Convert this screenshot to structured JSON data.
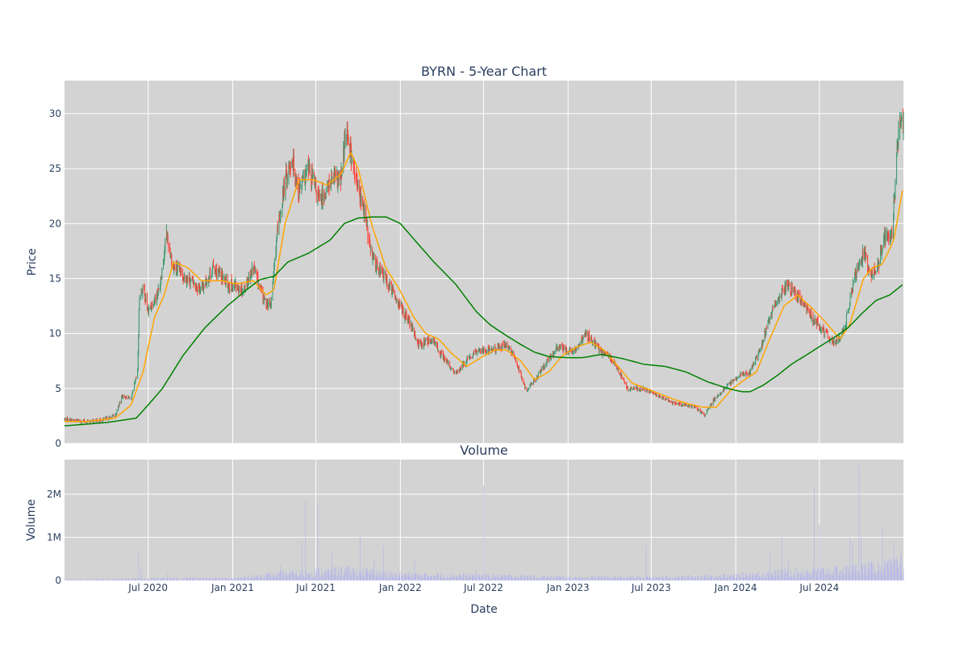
{
  "chart_data": [
    {
      "type": "candlestick",
      "title": "BYRN - 5-Year Chart",
      "ylabel": "Price",
      "ylim": [
        0,
        33
      ],
      "x_range": [
        "2020-01-01",
        "2024-12-31"
      ],
      "yticks": [
        0,
        5,
        10,
        15,
        20,
        25,
        30
      ],
      "grid": true,
      "colors": {
        "up": "#3d9970",
        "down": "#ff4136",
        "ma_short": "#ffa500",
        "ma_long": "#008000",
        "panel_bg": "#d3d3d3",
        "grid": "#ffffff"
      },
      "price_key_points": [
        [
          "2020-01-01",
          2.2
        ],
        [
          "2020-02-15",
          2.0
        ],
        [
          "2020-03-20",
          2.1
        ],
        [
          "2020-04-20",
          2.5
        ],
        [
          "2020-05-05",
          4.3
        ],
        [
          "2020-05-25",
          4.1
        ],
        [
          "2020-06-08",
          6.5
        ],
        [
          "2020-06-12",
          13.5
        ],
        [
          "2020-06-20",
          14.2
        ],
        [
          "2020-07-01",
          12.0
        ],
        [
          "2020-07-25",
          14.0
        ],
        [
          "2020-08-10",
          19.0
        ],
        [
          "2020-08-25",
          16.0
        ],
        [
          "2020-09-25",
          15.0
        ],
        [
          "2020-10-25",
          14.0
        ],
        [
          "2020-11-20",
          16.0
        ],
        [
          "2020-12-20",
          14.5
        ],
        [
          "2021-01-25",
          14.0
        ],
        [
          "2021-02-15",
          16.0
        ],
        [
          "2021-03-10",
          13.0
        ],
        [
          "2021-03-25",
          12.5
        ],
        [
          "2021-04-05",
          18.0
        ],
        [
          "2021-04-25",
          24.0
        ],
        [
          "2021-05-10",
          26.0
        ],
        [
          "2021-05-25",
          23.0
        ],
        [
          "2021-06-15",
          25.0
        ],
        [
          "2021-07-10",
          22.0
        ],
        [
          "2021-08-05",
          24.0
        ],
        [
          "2021-08-25",
          24.0
        ],
        [
          "2021-09-05",
          29.0
        ],
        [
          "2021-09-25",
          24.0
        ],
        [
          "2021-10-15",
          21.0
        ],
        [
          "2021-10-30",
          17.0
        ],
        [
          "2021-11-30",
          15.0
        ],
        [
          "2021-12-25",
          13.0
        ],
        [
          "2022-01-20",
          11.0
        ],
        [
          "2022-02-10",
          9.0
        ],
        [
          "2022-03-10",
          9.5
        ],
        [
          "2022-04-10",
          7.5
        ],
        [
          "2022-05-01",
          6.3
        ],
        [
          "2022-05-25",
          7.5
        ],
        [
          "2022-06-20",
          8.5
        ],
        [
          "2022-07-20",
          8.5
        ],
        [
          "2022-08-20",
          9.0
        ],
        [
          "2022-09-10",
          7.5
        ],
        [
          "2022-10-01",
          4.8
        ],
        [
          "2022-10-15",
          5.5
        ],
        [
          "2022-11-10",
          7.0
        ],
        [
          "2022-12-10",
          8.8
        ],
        [
          "2023-01-10",
          8.3
        ],
        [
          "2023-02-10",
          10.0
        ],
        [
          "2023-03-10",
          8.5
        ],
        [
          "2023-04-10",
          7.5
        ],
        [
          "2023-05-10",
          5.0
        ],
        [
          "2023-06-10",
          5.0
        ],
        [
          "2023-07-10",
          4.5
        ],
        [
          "2023-08-10",
          3.8
        ],
        [
          "2023-09-10",
          3.5
        ],
        [
          "2023-10-05",
          3.3
        ],
        [
          "2023-10-25",
          2.6
        ],
        [
          "2023-11-15",
          4.0
        ],
        [
          "2023-12-15",
          5.3
        ],
        [
          "2024-01-15",
          6.3
        ],
        [
          "2024-02-01",
          6.5
        ],
        [
          "2024-02-25",
          8.8
        ],
        [
          "2024-03-20",
          12.0
        ],
        [
          "2024-04-20",
          14.5
        ],
        [
          "2024-05-20",
          13.0
        ],
        [
          "2024-06-15",
          11.5
        ],
        [
          "2024-07-15",
          10.0
        ],
        [
          "2024-08-05",
          9.0
        ],
        [
          "2024-08-25",
          10.5
        ],
        [
          "2024-09-15",
          15.0
        ],
        [
          "2024-10-05",
          17.5
        ],
        [
          "2024-10-20",
          15.5
        ],
        [
          "2024-11-05",
          16.0
        ],
        [
          "2024-11-20",
          19.0
        ],
        [
          "2024-12-05",
          18.5
        ],
        [
          "2024-12-20",
          28.0
        ],
        [
          "2024-12-31",
          30.0
        ]
      ],
      "ma_short_key_points": [
        [
          "2020-01-01",
          2.0
        ],
        [
          "2020-02-20",
          2.0
        ],
        [
          "2020-04-20",
          2.3
        ],
        [
          "2020-05-25",
          3.5
        ],
        [
          "2020-06-20",
          6.5
        ],
        [
          "2020-07-15",
          11.5
        ],
        [
          "2020-08-05",
          13.5
        ],
        [
          "2020-08-25",
          16.5
        ],
        [
          "2020-09-25",
          16.0
        ],
        [
          "2020-10-25",
          14.8
        ],
        [
          "2020-12-10",
          14.8
        ],
        [
          "2021-01-10",
          14.5
        ],
        [
          "2021-02-15",
          14.8
        ],
        [
          "2021-03-15",
          13.5
        ],
        [
          "2021-04-01",
          14.0
        ],
        [
          "2021-04-25",
          20.0
        ],
        [
          "2021-05-25",
          24.0
        ],
        [
          "2021-06-25",
          24.0
        ],
        [
          "2021-07-25",
          23.5
        ],
        [
          "2021-08-25",
          24.5
        ],
        [
          "2021-09-15",
          26.5
        ],
        [
          "2021-10-01",
          25.0
        ],
        [
          "2021-10-30",
          20.0
        ],
        [
          "2021-11-30",
          16.0
        ],
        [
          "2021-12-30",
          14.0
        ],
        [
          "2022-01-30",
          11.5
        ],
        [
          "2022-02-25",
          10.0
        ],
        [
          "2022-03-25",
          9.5
        ],
        [
          "2022-04-20",
          8.3
        ],
        [
          "2022-05-25",
          7.0
        ],
        [
          "2022-06-25",
          7.8
        ],
        [
          "2022-07-25",
          8.5
        ],
        [
          "2022-08-20",
          8.5
        ],
        [
          "2022-09-20",
          7.5
        ],
        [
          "2022-10-20",
          5.8
        ],
        [
          "2022-11-20",
          6.5
        ],
        [
          "2022-12-20",
          8.0
        ],
        [
          "2023-01-20",
          8.8
        ],
        [
          "2023-02-20",
          9.2
        ],
        [
          "2023-03-20",
          8.5
        ],
        [
          "2023-04-20",
          7.0
        ],
        [
          "2023-05-20",
          5.5
        ],
        [
          "2023-06-20",
          5.0
        ],
        [
          "2023-07-20",
          4.5
        ],
        [
          "2023-08-20",
          4.0
        ],
        [
          "2023-09-20",
          3.6
        ],
        [
          "2023-10-20",
          3.3
        ],
        [
          "2023-11-20",
          3.3
        ],
        [
          "2023-12-20",
          4.8
        ],
        [
          "2024-01-20",
          5.8
        ],
        [
          "2024-02-15",
          6.5
        ],
        [
          "2024-03-15",
          9.5
        ],
        [
          "2024-04-15",
          12.5
        ],
        [
          "2024-05-15",
          13.5
        ],
        [
          "2024-06-15",
          12.3
        ],
        [
          "2024-07-15",
          11.0
        ],
        [
          "2024-08-15",
          9.5
        ],
        [
          "2024-09-05",
          10.8
        ],
        [
          "2024-10-05",
          15.0
        ],
        [
          "2024-10-25",
          16.0
        ],
        [
          "2024-11-15",
          16.3
        ],
        [
          "2024-12-10",
          18.5
        ],
        [
          "2024-12-31",
          23.5
        ]
      ],
      "ma_long_key_points": [
        [
          "2020-01-01",
          1.6
        ],
        [
          "2020-04-01",
          1.9
        ],
        [
          "2020-06-05",
          2.3
        ],
        [
          "2020-07-01",
          3.5
        ],
        [
          "2020-08-01",
          5.0
        ],
        [
          "2020-09-15",
          8.0
        ],
        [
          "2020-11-01",
          10.5
        ],
        [
          "2020-12-20",
          12.5
        ],
        [
          "2021-02-01",
          14.0
        ],
        [
          "2021-03-01",
          14.9
        ],
        [
          "2021-04-01",
          15.2
        ],
        [
          "2021-05-01",
          16.5
        ],
        [
          "2021-06-15",
          17.3
        ],
        [
          "2021-08-01",
          18.5
        ],
        [
          "2021-09-01",
          20.0
        ],
        [
          "2021-10-01",
          20.5
        ],
        [
          "2021-11-01",
          20.6
        ],
        [
          "2021-12-01",
          20.6
        ],
        [
          "2022-01-01",
          20.0
        ],
        [
          "2022-02-01",
          18.5
        ],
        [
          "2022-03-15",
          16.5
        ],
        [
          "2022-05-01",
          14.5
        ],
        [
          "2022-06-15",
          12.0
        ],
        [
          "2022-07-15",
          10.8
        ],
        [
          "2022-08-20",
          9.8
        ],
        [
          "2022-09-20",
          9.0
        ],
        [
          "2022-10-20",
          8.3
        ],
        [
          "2022-11-20",
          7.9
        ],
        [
          "2023-01-01",
          7.8
        ],
        [
          "2023-02-01",
          7.8
        ],
        [
          "2023-03-15",
          8.1
        ],
        [
          "2023-05-01",
          7.7
        ],
        [
          "2023-06-15",
          7.2
        ],
        [
          "2023-08-01",
          7.0
        ],
        [
          "2023-09-15",
          6.5
        ],
        [
          "2023-11-01",
          5.6
        ],
        [
          "2023-12-15",
          5.0
        ],
        [
          "2024-01-15",
          4.7
        ],
        [
          "2024-02-01",
          4.7
        ],
        [
          "2024-03-01",
          5.3
        ],
        [
          "2024-04-01",
          6.2
        ],
        [
          "2024-05-01",
          7.2
        ],
        [
          "2024-06-01",
          8.0
        ],
        [
          "2024-07-01",
          8.8
        ],
        [
          "2024-08-01",
          9.6
        ],
        [
          "2024-09-01",
          10.5
        ],
        [
          "2024-10-01",
          11.8
        ],
        [
          "2024-11-01",
          13.0
        ],
        [
          "2024-12-01",
          13.5
        ],
        [
          "2024-12-31",
          14.5
        ]
      ]
    },
    {
      "type": "bar",
      "title": "Volume",
      "xlabel": "Date",
      "ylabel": "Volume",
      "ylim": [
        0,
        2800000
      ],
      "yticks": [
        0,
        1000000,
        2000000
      ],
      "ytick_labels": [
        "0",
        "1M",
        "2M"
      ],
      "xticks": [
        "2020-07-01",
        "2021-01-01",
        "2021-07-01",
        "2022-01-01",
        "2022-07-01",
        "2023-01-01",
        "2023-07-01",
        "2024-01-01",
        "2024-07-01"
      ],
      "xtick_labels": [
        "Jul 2020",
        "Jan 2021",
        "Jul 2021",
        "Jan 2022",
        "Jul 2022",
        "Jan 2023",
        "Jul 2023",
        "Jan 2024",
        "Jul 2024"
      ],
      "colors": {
        "bar": "#b8b8e8"
      },
      "base_volume_key_points": [
        [
          "2020-01-01",
          20000
        ],
        [
          "2020-06-01",
          40000
        ],
        [
          "2020-09-01",
          60000
        ],
        [
          "2021-01-01",
          50000
        ],
        [
          "2021-04-01",
          150000
        ],
        [
          "2021-09-01",
          250000
        ],
        [
          "2022-01-01",
          150000
        ],
        [
          "2022-07-01",
          120000
        ],
        [
          "2023-01-01",
          80000
        ],
        [
          "2023-07-01",
          80000
        ],
        [
          "2024-01-01",
          120000
        ],
        [
          "2024-04-01",
          200000
        ],
        [
          "2024-08-01",
          250000
        ],
        [
          "2024-12-31",
          400000
        ]
      ],
      "volume_spikes": [
        [
          "2020-06-10",
          700000
        ],
        [
          "2020-06-15",
          300000
        ],
        [
          "2020-08-12",
          150000
        ],
        [
          "2021-03-20",
          450000
        ],
        [
          "2021-04-15",
          350000
        ],
        [
          "2021-06-01",
          900000
        ],
        [
          "2021-06-08",
          1850000
        ],
        [
          "2021-07-05",
          1800000
        ],
        [
          "2021-08-05",
          700000
        ],
        [
          "2021-09-05",
          450000
        ],
        [
          "2021-09-12",
          1300000
        ],
        [
          "2021-10-05",
          1050000
        ],
        [
          "2021-11-05",
          500000
        ],
        [
          "2021-11-25",
          800000
        ],
        [
          "2022-02-01",
          500000
        ],
        [
          "2022-07-01",
          2200000
        ],
        [
          "2022-06-15",
          250000
        ],
        [
          "2023-06-25",
          500000
        ],
        [
          "2023-06-20",
          800000
        ],
        [
          "2024-03-15",
          700000
        ],
        [
          "2024-04-10",
          1100000
        ],
        [
          "2024-04-25",
          500000
        ],
        [
          "2024-06-20",
          2150000
        ],
        [
          "2024-07-01",
          1300000
        ],
        [
          "2024-08-25",
          1800000
        ],
        [
          "2024-09-05",
          1000000
        ],
        [
          "2024-09-10",
          900000
        ],
        [
          "2024-09-25",
          2700000
        ],
        [
          "2024-09-30",
          1000000
        ],
        [
          "2024-10-20",
          700000
        ],
        [
          "2024-11-15",
          1200000
        ],
        [
          "2024-12-01",
          1450000
        ],
        [
          "2024-12-10",
          900000
        ],
        [
          "2024-12-25",
          700000
        ]
      ]
    }
  ]
}
